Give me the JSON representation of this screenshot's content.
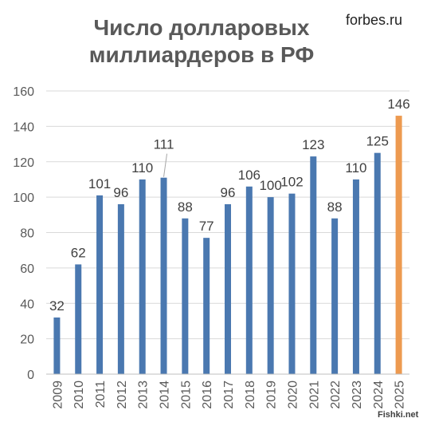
{
  "chart_data": {
    "type": "bar",
    "title": "Число долларовых миллиардеров в РФ",
    "title_lines": [
      "Число долларовых",
      "миллиардеров в РФ"
    ],
    "source": "forbes.ru",
    "watermark": "Fishki.net",
    "categories": [
      "2009",
      "2010",
      "2011",
      "2012",
      "2013",
      "2014",
      "2015",
      "2016",
      "2017",
      "2018",
      "2019",
      "2020",
      "2021",
      "2022",
      "2023",
      "2024",
      "2025"
    ],
    "values": [
      32,
      62,
      101,
      96,
      110,
      111,
      88,
      77,
      96,
      106,
      100,
      102,
      123,
      88,
      110,
      125,
      146
    ],
    "ylim": [
      0,
      160
    ],
    "yticks": [
      0,
      20,
      40,
      60,
      80,
      100,
      120,
      140,
      160
    ],
    "grid": true,
    "legend": "none",
    "colors": {
      "bar": "#4a78b0",
      "highlight": "#ed9a50",
      "grid": "#d9d9d9",
      "label": "#404040",
      "axis_text": "#595959",
      "title": "#595959"
    },
    "highlight_index": 16,
    "label_leaders": [
      5
    ]
  }
}
